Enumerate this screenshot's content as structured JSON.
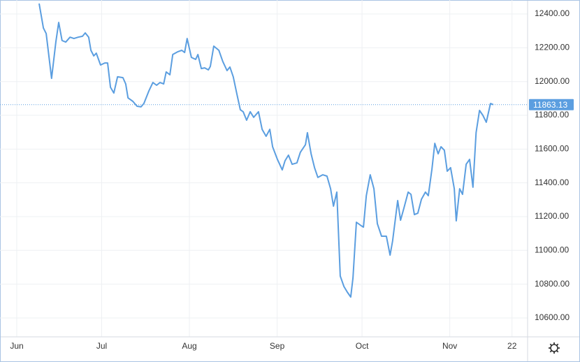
{
  "chart_data": {
    "type": "line",
    "color": "#5b9ee0",
    "x": [
      7.9,
      9.4,
      10.4,
      12.3,
      13.8,
      14.8,
      16.0,
      17.3,
      18.8,
      20.2,
      21.7,
      23.2,
      24.2,
      25.4,
      26.2,
      27.2,
      28.1,
      29.6,
      31.1,
      32.1,
      33.1,
      34.3,
      35.6,
      37.5,
      38.5,
      39.3,
      41.0,
      42.5,
      43.9,
      44.9,
      46.7,
      48.1,
      49.4,
      50.6,
      51.9,
      52.8,
      54.1,
      55.1,
      56.8,
      58.3,
      59.3,
      60.2,
      61.7,
      63.2,
      64.0,
      65.2,
      66.4,
      67.7,
      68.4,
      69.6,
      71.4,
      72.8,
      74.3,
      75.3,
      76.5,
      77.8,
      79.0,
      80.0,
      81.2,
      82.5,
      83.7,
      85.4,
      86.7,
      88.1,
      89.4,
      90.4,
      92.1,
      93.8,
      94.8,
      96.0,
      97.3,
      99.0,
      100.2,
      102.0,
      102.7,
      104.0,
      105.2,
      106.4,
      108.1,
      109.6,
      110.9,
      111.9,
      113.1,
      114.3,
      115.6,
      116.8,
      118.0,
      118.8,
      120.0,
      121.7,
      122.5,
      123.5,
      124.9,
      126.2,
      127.4,
      128.9,
      130.6,
      131.9,
      132.8,
      134.6,
      135.6,
      136.8,
      138.3,
      139.3,
      140.5,
      141.7,
      143.0,
      144.4,
      145.4,
      146.7,
      147.7,
      148.9,
      149.9,
      151.1,
      152.1,
      153.3,
      154.6,
      155.3,
      156.5,
      157.5,
      158.8,
      160.0,
      161.2,
      162.3,
      163.5,
      164.7,
      165.9,
      167.4,
      168.4
    ],
    "values": [
      12462,
      12317,
      12284,
      12019,
      12234,
      12350,
      12243,
      12234,
      12263,
      12255,
      12263,
      12268,
      12288,
      12263,
      12185,
      12152,
      12168,
      12098,
      12110,
      12110,
      11966,
      11932,
      12028,
      12023,
      11986,
      11903,
      11883,
      11854,
      11850,
      11870,
      11945,
      11994,
      11978,
      11994,
      11986,
      12057,
      12040,
      12160,
      12176,
      12185,
      12172,
      12255,
      12143,
      12131,
      12160,
      12077,
      12081,
      12069,
      12090,
      12210,
      12185,
      12119,
      12065,
      12086,
      12028,
      11924,
      11833,
      11821,
      11771,
      11821,
      11788,
      11821,
      11717,
      11676,
      11717,
      11614,
      11539,
      11477,
      11531,
      11564,
      11510,
      11518,
      11581,
      11626,
      11697,
      11572,
      11490,
      11432,
      11448,
      11440,
      11365,
      11262,
      11345,
      10848,
      10786,
      10753,
      10724,
      10836,
      11167,
      11146,
      11138,
      11324,
      11448,
      11365,
      11158,
      11084,
      11084,
      10972,
      11055,
      11295,
      11179,
      11250,
      11345,
      11332,
      11212,
      11220,
      11303,
      11345,
      11324,
      11481,
      11634,
      11572,
      11614,
      11593,
      11469,
      11490,
      11365,
      11175,
      11365,
      11332,
      11510,
      11539,
      11374,
      11697,
      11829,
      11800,
      11759,
      11870,
      11863.13
    ],
    "xlim": [
      -5.93,
      180.5
    ],
    "xticks": [
      {
        "value": 0,
        "label": "Jun"
      },
      {
        "value": 30,
        "label": "Jul"
      },
      {
        "value": 61,
        "label": "Aug"
      },
      {
        "value": 92,
        "label": "Sep"
      },
      {
        "value": 122,
        "label": "Oct"
      },
      {
        "value": 153,
        "label": "Nov"
      },
      {
        "value": 175,
        "label": "22"
      }
    ],
    "ylim": [
      10488,
      12483
    ],
    "yticks": [
      {
        "value": 10600,
        "label": "10600.00"
      },
      {
        "value": 10800,
        "label": "10800.00"
      },
      {
        "value": 11000,
        "label": "11000.00"
      },
      {
        "value": 11200,
        "label": "11200.00"
      },
      {
        "value": 11400,
        "label": "11400.00"
      },
      {
        "value": 11600,
        "label": "11600.00"
      },
      {
        "value": 11800,
        "label": "11800.00"
      },
      {
        "value": 12000,
        "label": "12000.00"
      },
      {
        "value": 12200,
        "label": "12200.00"
      },
      {
        "value": 12400,
        "label": "12400.00"
      }
    ],
    "grid": true
  }
}
